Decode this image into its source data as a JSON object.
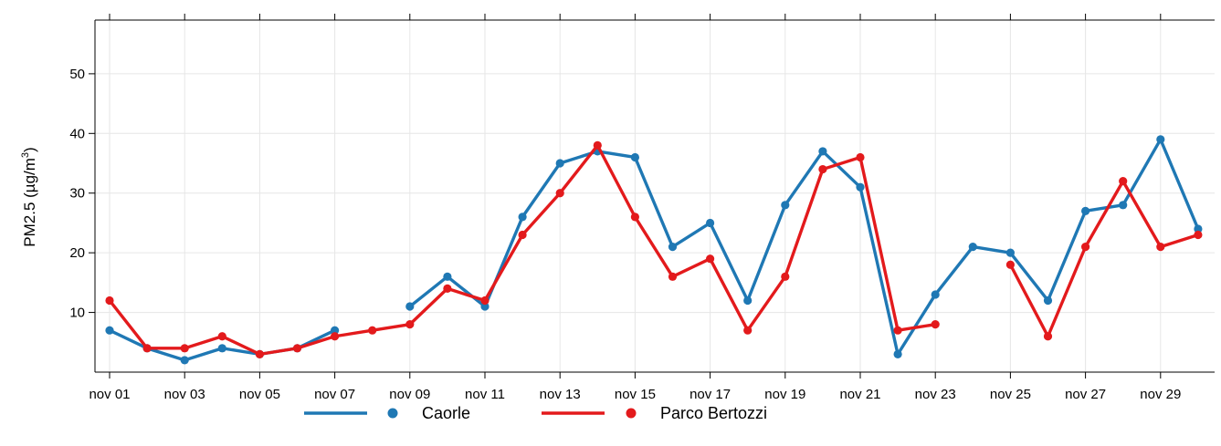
{
  "chart_data": {
    "type": "line",
    "ylabel": "PM2.5 (µg/m³)",
    "ylabel_parts": {
      "main": "PM2.5 (µg/m",
      "sup": "3",
      "tail": ")"
    },
    "ylim": [
      0,
      59
    ],
    "yticks": [
      10,
      20,
      30,
      40,
      50
    ],
    "x": [
      "nov 01",
      "nov 02",
      "nov 03",
      "nov 04",
      "nov 05",
      "nov 06",
      "nov 07",
      "nov 08",
      "nov 09",
      "nov 10",
      "nov 11",
      "nov 12",
      "nov 13",
      "nov 14",
      "nov 15",
      "nov 16",
      "nov 17",
      "nov 18",
      "nov 19",
      "nov 20",
      "nov 21",
      "nov 22",
      "nov 23",
      "nov 24",
      "nov 25",
      "nov 26",
      "nov 27",
      "nov 28",
      "nov 29",
      "nov 30"
    ],
    "xtick_labels": [
      "nov 01",
      "nov 03",
      "nov 05",
      "nov 07",
      "nov 09",
      "nov 11",
      "nov 13",
      "nov 15",
      "nov 17",
      "nov 19",
      "nov 21",
      "nov 23",
      "nov 25",
      "nov 27",
      "nov 29"
    ],
    "grid": true,
    "legend_position": "bottom",
    "series": [
      {
        "name": "Caorle",
        "color": "#1f78b4",
        "values": [
          7,
          4,
          2,
          4,
          3,
          4,
          7,
          null,
          11,
          16,
          11,
          26,
          35,
          37,
          36,
          21,
          25,
          12,
          28,
          37,
          31,
          3,
          13,
          21,
          20,
          12,
          27,
          28,
          39,
          24
        ]
      },
      {
        "name": "Parco Bertozzi",
        "color": "#e31a1c",
        "values": [
          12,
          4,
          4,
          6,
          3,
          4,
          6,
          7,
          8,
          14,
          12,
          23,
          30,
          38,
          26,
          16,
          19,
          7,
          16,
          34,
          36,
          7,
          8,
          null,
          18,
          6,
          21,
          32,
          21,
          23
        ]
      }
    ]
  }
}
